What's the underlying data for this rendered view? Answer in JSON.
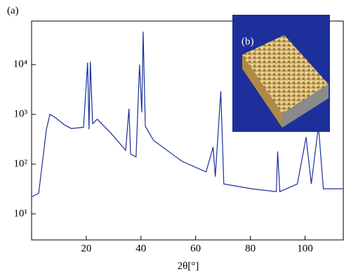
{
  "chart_data": {
    "type": "line",
    "panel_label": "(a)",
    "inset_label": "(b)",
    "x_label": "2θ[°]",
    "log_y": true,
    "color": "#1a2f9c",
    "x": [
      0,
      2.6,
      4,
      5.4,
      6.7,
      8.8,
      11.9,
      14.5,
      19,
      20.5,
      21,
      21.5,
      22.3,
      24,
      29,
      34.4,
      35.6,
      36.2,
      38.2,
      39.5,
      40.3,
      40.8,
      41.6,
      44.6,
      55,
      63.8,
      66.4,
      67.2,
      69.2,
      70.3,
      80.5,
      89.5,
      90,
      90.8,
      97.2,
      100.4,
      102.3,
      104.9,
      106.7,
      114
    ],
    "values": [
      22,
      26,
      114,
      490,
      1000,
      850,
      620,
      520,
      550,
      11000,
      500,
      11500,
      650,
      800,
      420,
      190,
      1300,
      160,
      140,
      10000,
      1100,
      46000,
      580,
      300,
      114,
      70,
      220,
      56,
      2900,
      40,
      32,
      28,
      180,
      28,
      40,
      350,
      40,
      580,
      32,
      32
    ],
    "xlim": [
      0,
      114
    ],
    "ylim": [
      3,
      75000
    ],
    "xticks": [
      20,
      40,
      60,
      80,
      100
    ],
    "yticks": [
      {
        "value": 10,
        "label": "10¹"
      },
      {
        "value": 100,
        "label": "10²"
      },
      {
        "value": 1000,
        "label": "10³"
      },
      {
        "value": 10000,
        "label": "10⁴"
      }
    ]
  }
}
